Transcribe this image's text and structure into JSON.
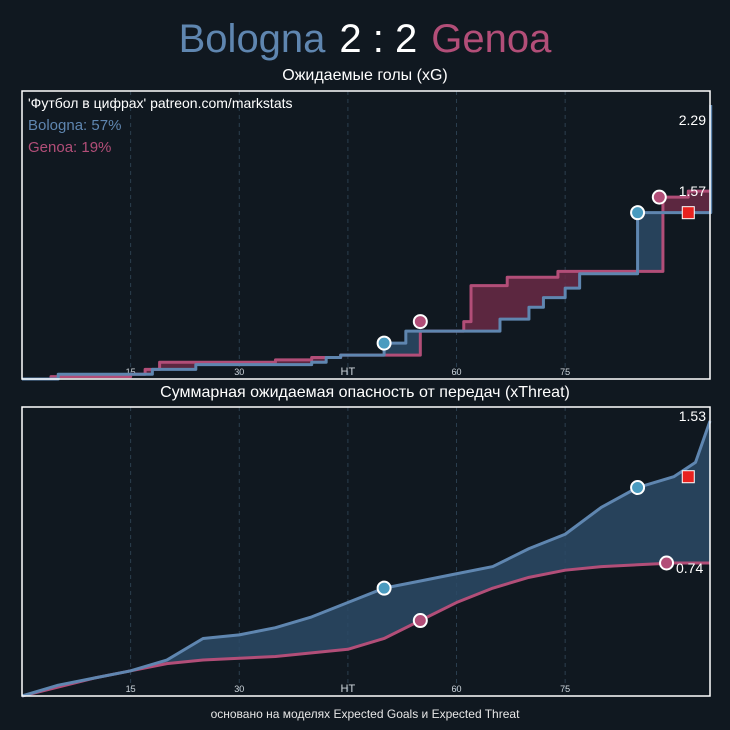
{
  "header": {
    "home_team": "Bologna",
    "score_separator": "2 : 2",
    "away_team": "Genoa"
  },
  "colors": {
    "home": "#5f86b0",
    "away": "#b24e78",
    "goal_home": "#4a9bbf",
    "goal_away": "#b24e78",
    "red_card": "#e8221f",
    "background": "#101820",
    "fill_home": "#2b4a66",
    "fill_away": "#6a2a46"
  },
  "credit": "'Футбол в цифрах' patreon.com/markstats",
  "legend": {
    "home_prob": "Bologna: 57%",
    "away_prob": "Genoa: 19%"
  },
  "footer": "основано на моделях Expected Goals и Expected Threat",
  "chart_data": [
    {
      "type": "line",
      "title": "Ожидаемые голы (xG)",
      "xlim": [
        0,
        95
      ],
      "ylim": [
        0,
        2.29
      ],
      "x_ticks": [
        {
          "value": 15,
          "label": "15"
        },
        {
          "value": 30,
          "label": "30"
        },
        {
          "value": 45,
          "label": "HT"
        },
        {
          "value": 60,
          "label": "60"
        },
        {
          "value": 75,
          "label": "75"
        }
      ],
      "step": true,
      "series": [
        {
          "name": "Bologna",
          "final_label": "2.29",
          "points": [
            [
              0,
              0.0
            ],
            [
              5,
              0.04
            ],
            [
              15,
              0.04
            ],
            [
              18,
              0.08
            ],
            [
              24,
              0.12
            ],
            [
              40,
              0.14
            ],
            [
              42,
              0.18
            ],
            [
              44,
              0.2
            ],
            [
              50,
              0.3
            ],
            [
              53,
              0.4
            ],
            [
              59,
              0.4
            ],
            [
              64,
              0.4
            ],
            [
              66,
              0.5
            ],
            [
              70,
              0.6
            ],
            [
              72,
              0.68
            ],
            [
              75,
              0.76
            ],
            [
              77,
              0.88
            ],
            [
              85,
              1.39
            ],
            [
              95,
              1.39
            ],
            [
              95.1,
              2.29
            ]
          ],
          "goals": [
            {
              "minute": 50,
              "value": 0.3
            },
            {
              "minute": 85,
              "value": 1.39
            }
          ]
        },
        {
          "name": "Genoa",
          "final_label": "1.57",
          "points": [
            [
              0,
              0.0
            ],
            [
              4,
              0.02
            ],
            [
              15,
              0.04
            ],
            [
              17,
              0.08
            ],
            [
              19,
              0.14
            ],
            [
              35,
              0.16
            ],
            [
              40,
              0.18
            ],
            [
              44,
              0.2
            ],
            [
              55,
              0.4
            ],
            [
              61,
              0.48
            ],
            [
              62,
              0.78
            ],
            [
              67,
              0.85
            ],
            [
              74,
              0.9
            ],
            [
              88,
              0.9
            ],
            [
              88.5,
              1.52
            ],
            [
              92,
              1.57
            ],
            [
              95,
              1.57
            ]
          ],
          "goals": [
            {
              "minute": 55,
              "value": 0.48
            },
            {
              "minute": 88,
              "value": 1.52
            }
          ],
          "red_card": {
            "minute": 92,
            "value": 1.39
          }
        }
      ]
    },
    {
      "type": "area",
      "title": "Суммарная ожидаемая опасность от передач (xThreat)",
      "xlim": [
        0,
        95
      ],
      "ylim": [
        0,
        1.53
      ],
      "x_ticks": [
        {
          "value": 15,
          "label": "15"
        },
        {
          "value": 30,
          "label": "30"
        },
        {
          "value": 45,
          "label": "HT"
        },
        {
          "value": 60,
          "label": "60"
        },
        {
          "value": 75,
          "label": "75"
        }
      ],
      "series": [
        {
          "name": "Bologna",
          "final_label": "1.53",
          "points": [
            [
              0,
              0.0
            ],
            [
              5,
              0.06
            ],
            [
              10,
              0.1
            ],
            [
              15,
              0.14
            ],
            [
              20,
              0.2
            ],
            [
              25,
              0.32
            ],
            [
              30,
              0.34
            ],
            [
              35,
              0.38
            ],
            [
              40,
              0.44
            ],
            [
              45,
              0.52
            ],
            [
              50,
              0.6
            ],
            [
              55,
              0.64
            ],
            [
              60,
              0.68
            ],
            [
              65,
              0.72
            ],
            [
              70,
              0.82
            ],
            [
              75,
              0.9
            ],
            [
              80,
              1.05
            ],
            [
              85,
              1.16
            ],
            [
              90,
              1.22
            ],
            [
              93,
              1.3
            ],
            [
              95,
              1.53
            ]
          ],
          "goals": [
            {
              "minute": 50,
              "value": 0.6
            },
            {
              "minute": 85,
              "value": 1.16
            }
          ]
        },
        {
          "name": "Genoa",
          "final_label": "0.74",
          "points": [
            [
              0,
              0.0
            ],
            [
              5,
              0.05
            ],
            [
              10,
              0.1
            ],
            [
              15,
              0.14
            ],
            [
              20,
              0.18
            ],
            [
              25,
              0.2
            ],
            [
              30,
              0.21
            ],
            [
              35,
              0.22
            ],
            [
              40,
              0.24
            ],
            [
              45,
              0.26
            ],
            [
              50,
              0.32
            ],
            [
              55,
              0.42
            ],
            [
              60,
              0.52
            ],
            [
              65,
              0.6
            ],
            [
              70,
              0.66
            ],
            [
              75,
              0.7
            ],
            [
              80,
              0.72
            ],
            [
              85,
              0.73
            ],
            [
              90,
              0.74
            ],
            [
              95,
              0.74
            ]
          ],
          "goals": [
            {
              "minute": 55,
              "value": 0.42
            },
            {
              "minute": 89,
              "value": 0.74
            }
          ]
        }
      ],
      "red_card": {
        "minute": 92,
        "value": 1.22
      }
    }
  ]
}
